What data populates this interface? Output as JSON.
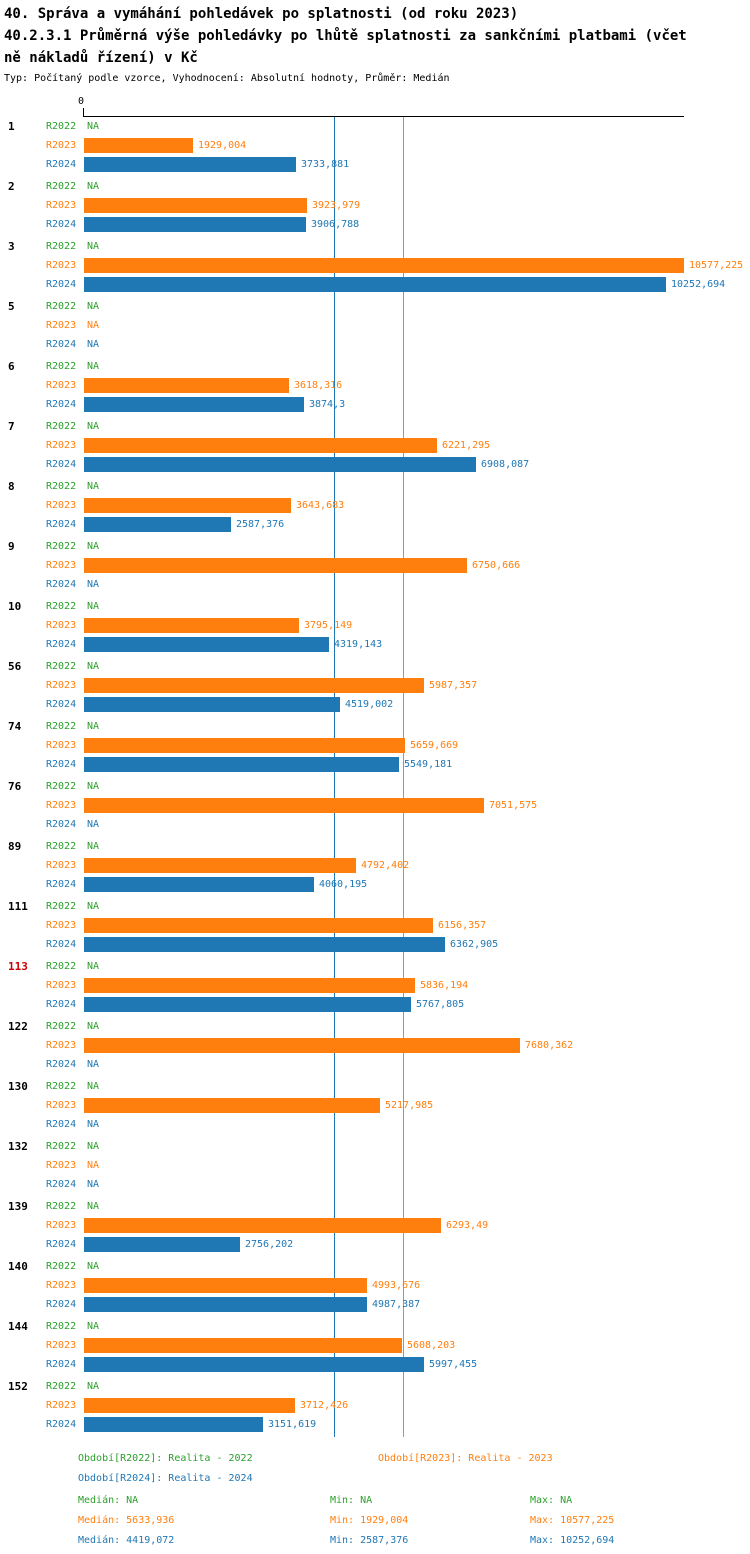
{
  "header": {
    "title": "40. Správa a vymáhání pohledávek po splatnosti (od roku 2023)",
    "subtitle_line1": "40.2.3.1 Průměrná výše pohledávky po lhůtě splatnosti za sankčními platbami (včet",
    "subtitle_line2": "ně nákladů řízení) v Kč",
    "meta": "Typ: Počítaný podle vzorce, Vyhodnocení: Absolutní hodnoty, Průměr: Medián"
  },
  "chart_data": {
    "type": "bar",
    "orientation": "horizontal",
    "x_axis": {
      "zero_label": "0",
      "min": 0,
      "max": 10577.225,
      "grid": false
    },
    "series": [
      {
        "label": "R2022",
        "color": "#2ca02c"
      },
      {
        "label": "R2023",
        "color": "#ff7f0e"
      },
      {
        "label": "R2024",
        "color": "#1f77b4"
      }
    ],
    "colors": {
      "highlight": "#cc0000",
      "axis": "#000000"
    },
    "median_lines": [
      {
        "series": "R2024",
        "value": 4419.072,
        "color": "#1f77b4"
      },
      {
        "series": "R2023",
        "value": 5633.936,
        "color": "#ff7f0e"
      }
    ],
    "groups": [
      {
        "id": "1",
        "highlight": false,
        "values": [
          null,
          1929.004,
          3733.881
        ],
        "labels": [
          "NA",
          "1929,004",
          "3733,881"
        ]
      },
      {
        "id": "2",
        "highlight": false,
        "values": [
          null,
          3923.979,
          3906.788
        ],
        "labels": [
          "NA",
          "3923,979",
          "3906,788"
        ]
      },
      {
        "id": "3",
        "highlight": false,
        "values": [
          null,
          10577.225,
          10252.694
        ],
        "labels": [
          "NA",
          "10577,225",
          "10252,694"
        ]
      },
      {
        "id": "5",
        "highlight": false,
        "values": [
          null,
          null,
          null
        ],
        "labels": [
          "NA",
          "NA",
          "NA"
        ]
      },
      {
        "id": "6",
        "highlight": false,
        "values": [
          null,
          3618.316,
          3874.3
        ],
        "labels": [
          "NA",
          "3618,316",
          "3874,3"
        ]
      },
      {
        "id": "7",
        "highlight": false,
        "values": [
          null,
          6221.295,
          6908.087
        ],
        "labels": [
          "NA",
          "6221,295",
          "6908,087"
        ]
      },
      {
        "id": "8",
        "highlight": false,
        "values": [
          null,
          3643.683,
          2587.376
        ],
        "labels": [
          "NA",
          "3643,683",
          "2587,376"
        ]
      },
      {
        "id": "9",
        "highlight": false,
        "values": [
          null,
          6750.666,
          null
        ],
        "labels": [
          "NA",
          "6750,666",
          "NA"
        ]
      },
      {
        "id": "10",
        "highlight": false,
        "values": [
          null,
          3795.149,
          4319.143
        ],
        "labels": [
          "NA",
          "3795,149",
          "4319,143"
        ]
      },
      {
        "id": "56",
        "highlight": false,
        "values": [
          null,
          5987.357,
          4519.002
        ],
        "labels": [
          "NA",
          "5987,357",
          "4519,002"
        ]
      },
      {
        "id": "74",
        "highlight": false,
        "values": [
          null,
          5659.669,
          5549.181
        ],
        "labels": [
          "NA",
          "5659,669",
          "5549,181"
        ]
      },
      {
        "id": "76",
        "highlight": false,
        "values": [
          null,
          7051.575,
          null
        ],
        "labels": [
          "NA",
          "7051,575",
          "NA"
        ]
      },
      {
        "id": "89",
        "highlight": false,
        "values": [
          null,
          4792.402,
          4060.195
        ],
        "labels": [
          "NA",
          "4792,402",
          "4060,195"
        ]
      },
      {
        "id": "111",
        "highlight": false,
        "values": [
          null,
          6156.357,
          6362.905
        ],
        "labels": [
          "NA",
          "6156,357",
          "6362,905"
        ]
      },
      {
        "id": "113",
        "highlight": true,
        "values": [
          null,
          5836.194,
          5767.805
        ],
        "labels": [
          "NA",
          "5836,194",
          "5767,805"
        ]
      },
      {
        "id": "122",
        "highlight": false,
        "values": [
          null,
          7680.362,
          null
        ],
        "labels": [
          "NA",
          "7680,362",
          "NA"
        ]
      },
      {
        "id": "130",
        "highlight": false,
        "values": [
          null,
          5217.985,
          null
        ],
        "labels": [
          "NA",
          "5217,985",
          "NA"
        ]
      },
      {
        "id": "132",
        "highlight": false,
        "values": [
          null,
          null,
          null
        ],
        "labels": [
          "NA",
          "NA",
          "NA"
        ]
      },
      {
        "id": "139",
        "highlight": false,
        "values": [
          null,
          6293.49,
          2756.202
        ],
        "labels": [
          "NA",
          "6293,49",
          "2756,202"
        ]
      },
      {
        "id": "140",
        "highlight": false,
        "values": [
          null,
          4993.676,
          4987.387
        ],
        "labels": [
          "NA",
          "4993,676",
          "4987,387"
        ]
      },
      {
        "id": "144",
        "highlight": false,
        "values": [
          null,
          5608.203,
          5997.455
        ],
        "labels": [
          "NA",
          "5608,203",
          "5997,455"
        ]
      },
      {
        "id": "152",
        "highlight": false,
        "values": [
          null,
          3712.426,
          3151.619
        ],
        "labels": [
          "NA",
          "3712,426",
          "3151,619"
        ]
      }
    ],
    "legend": {
      "items": [
        {
          "label": "Období[R2022]: Realita - 2022",
          "color": "#2ca02c"
        },
        {
          "label": "Období[R2023]: Realita - 2023",
          "color": "#ff7f0e"
        },
        {
          "label": "Období[R2024]: Realita - 2024",
          "color": "#1f77b4"
        }
      ]
    },
    "stats": {
      "rows": [
        {
          "median": "Medián: NA",
          "min": "Min: NA",
          "max": "Max: NA",
          "color": "#2ca02c"
        },
        {
          "median": "Medián: 5633,936",
          "min": "Min: 1929,004",
          "max": "Max: 10577,225",
          "color": "#ff7f0e"
        },
        {
          "median": "Medián: 4419,072",
          "min": "Min: 2587,376",
          "max": "Max: 10252,694",
          "color": "#1f77b4"
        }
      ]
    }
  }
}
